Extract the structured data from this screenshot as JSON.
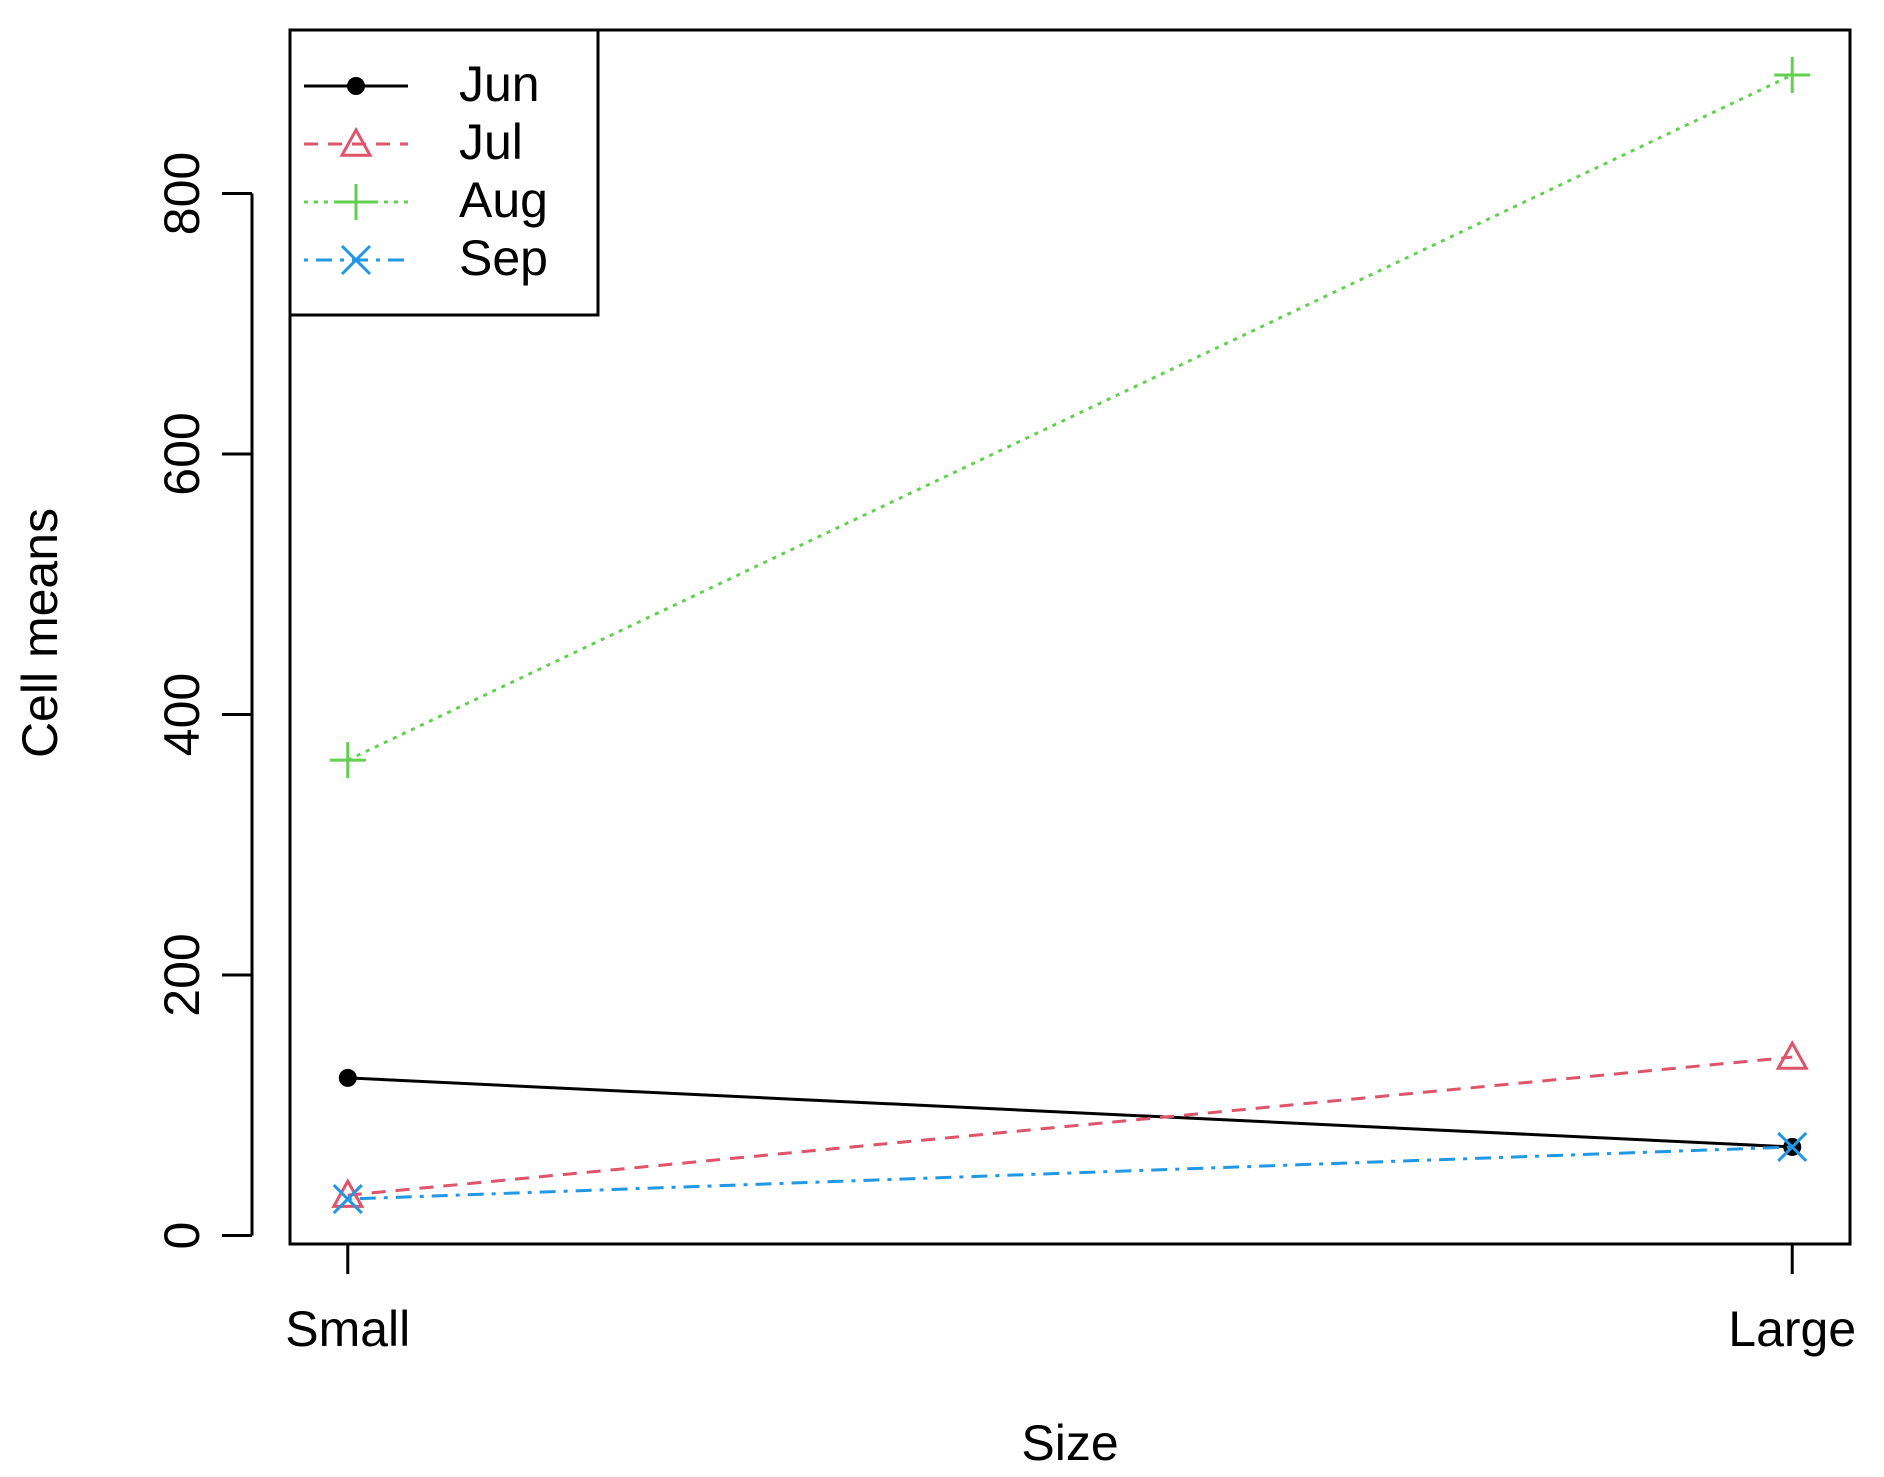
{
  "chart_data": {
    "type": "line",
    "xlabel": "Size",
    "ylabel": "Cell means",
    "categories": [
      "Small",
      "Large"
    ],
    "series": [
      {
        "name": "Jun",
        "color": "#000000",
        "line_style": "solid",
        "marker": "dot",
        "values": [
          121,
          68
        ]
      },
      {
        "name": "Jul",
        "color": "#df536b",
        "line_style": "dashed",
        "marker": "triangle",
        "values": [
          31,
          137
        ]
      },
      {
        "name": "Aug",
        "color": "#61d04f",
        "line_style": "dotted",
        "marker": "plus",
        "values": [
          365,
          891
        ]
      },
      {
        "name": "Sep",
        "color": "#2297e6",
        "line_style": "dashdot",
        "marker": "cross",
        "values": [
          28,
          68
        ]
      }
    ],
    "ylim": [
      -6.5,
      925.5
    ],
    "yticks": [
      0,
      200,
      400,
      600,
      800
    ],
    "legend": "top-left"
  }
}
